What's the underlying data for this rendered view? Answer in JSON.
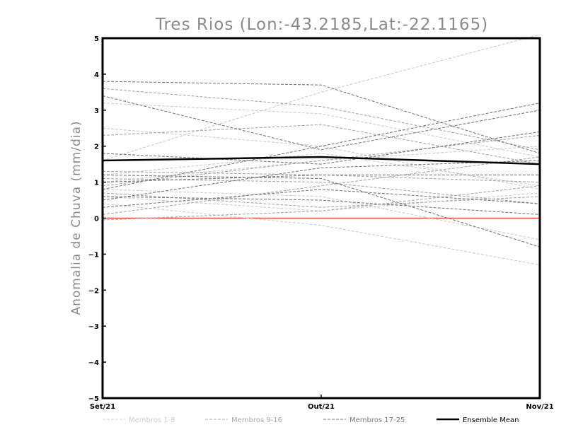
{
  "chart_data": {
    "type": "line",
    "title": "Tres Rios (Lon:-43.2185,Lat:-22.1165)",
    "ylabel": "Anomalia de Chuva (mm/dia)",
    "xlabel": "",
    "categories": [
      "Set/21",
      "Out/21",
      "Nov/21"
    ],
    "ylim": [
      -5,
      5
    ],
    "yticks": [
      -5,
      -4,
      -3,
      -2,
      -1,
      0,
      1,
      2,
      3,
      4,
      5
    ],
    "zero_line": {
      "value": 0,
      "color": "#e8504a"
    },
    "groups": [
      {
        "name": "Membros 1-8",
        "color": "#cdcdcd",
        "style": "dashed"
      },
      {
        "name": "Membros 9-16",
        "color": "#a8a8a8",
        "style": "dashed"
      },
      {
        "name": "Membros 17-25",
        "color": "#7a7a7a",
        "style": "dashed"
      },
      {
        "name": "Ensemble Mean",
        "color": "#000000",
        "style": "solid"
      }
    ],
    "series": [
      {
        "group": 0,
        "values": [
          1.6,
          3.5,
          5.1
        ]
      },
      {
        "group": 0,
        "values": [
          3.2,
          2.9,
          1.7
        ]
      },
      {
        "group": 0,
        "values": [
          2.5,
          2.0,
          0.8
        ]
      },
      {
        "group": 0,
        "values": [
          1.2,
          1.8,
          0.9
        ]
      },
      {
        "group": 0,
        "values": [
          0.8,
          0.6,
          -0.6
        ]
      },
      {
        "group": 0,
        "values": [
          0.4,
          -0.2,
          -1.3
        ]
      },
      {
        "group": 0,
        "values": [
          1.0,
          1.6,
          2.0
        ]
      },
      {
        "group": 0,
        "values": [
          0.6,
          0.2,
          0.7
        ]
      },
      {
        "group": 1,
        "values": [
          3.6,
          3.1,
          1.9
        ]
      },
      {
        "group": 1,
        "values": [
          2.3,
          2.6,
          1.5
        ]
      },
      {
        "group": 1,
        "values": [
          1.3,
          1.2,
          1.0
        ]
      },
      {
        "group": 1,
        "values": [
          0.9,
          1.6,
          2.3
        ]
      },
      {
        "group": 1,
        "values": [
          0.7,
          0.3,
          0.6
        ]
      },
      {
        "group": 1,
        "values": [
          0.1,
          0.9,
          1.7
        ]
      },
      {
        "group": 1,
        "values": [
          -0.05,
          0.2,
          0.9
        ]
      },
      {
        "group": 1,
        "values": [
          1.1,
          1.0,
          0.4
        ]
      },
      {
        "group": 2,
        "values": [
          3.8,
          3.7,
          1.8
        ]
      },
      {
        "group": 2,
        "values": [
          3.4,
          1.9,
          3.0
        ]
      },
      {
        "group": 2,
        "values": [
          1.8,
          1.5,
          2.4
        ]
      },
      {
        "group": 2,
        "values": [
          1.2,
          1.1,
          -0.8
        ]
      },
      {
        "group": 2,
        "values": [
          0.8,
          2.0,
          3.2
        ]
      },
      {
        "group": 2,
        "values": [
          0.5,
          1.4,
          1.6
        ]
      },
      {
        "group": 2,
        "values": [
          0.6,
          0.5,
          0.1
        ]
      },
      {
        "group": 2,
        "values": [
          1.0,
          1.2,
          1.2
        ]
      },
      {
        "group": 2,
        "values": [
          0.3,
          0.8,
          0.4
        ]
      },
      {
        "group": 3,
        "values": [
          1.6,
          1.7,
          1.5
        ]
      }
    ]
  }
}
